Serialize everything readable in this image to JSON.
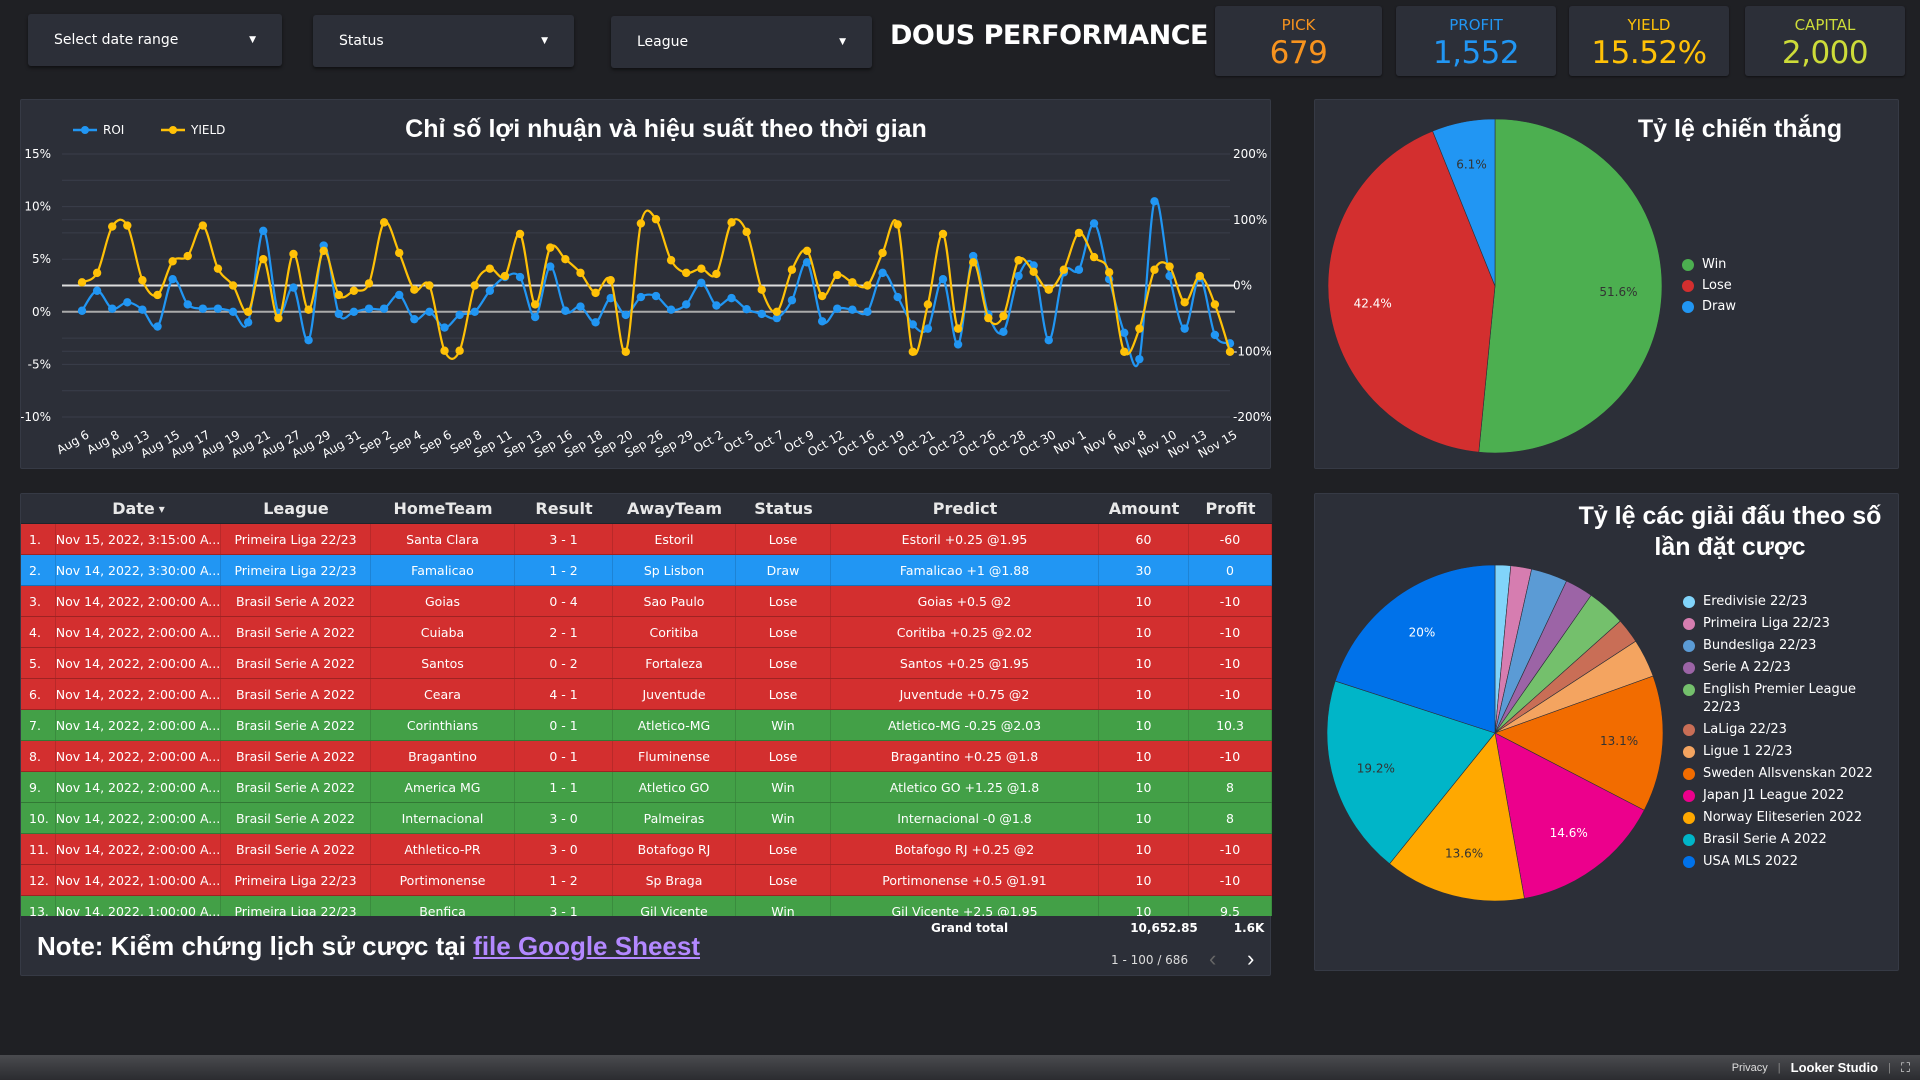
{
  "filters": {
    "date_range": "Select date range",
    "status": "Status",
    "league": "League"
  },
  "brand_title": "DOUS PERFORMANCE",
  "kpis": [
    {
      "label": "PICK",
      "value": "679",
      "color": "#f7931e"
    },
    {
      "label": "PROFIT",
      "value": "1,552",
      "color": "#2196f3"
    },
    {
      "label": "YIELD",
      "value": "15.52%",
      "color": "#ffc107"
    },
    {
      "label": "CAPITAL",
      "value": "2,000",
      "color": "#cddc39"
    }
  ],
  "chart_data": [
    {
      "type": "line",
      "title": "Chỉ số lợi nhuận và hiệu suất theo thời gian",
      "legend_position": "top-left",
      "grid": true,
      "y_left": {
        "ticks": [
          "15%",
          "10%",
          "5%",
          "0%",
          "-5%",
          "-10%"
        ],
        "range": [
          -10,
          15
        ]
      },
      "y_right": {
        "ticks": [
          "200%",
          "100%",
          "0%",
          "-100%",
          "-200%"
        ],
        "range": [
          -200,
          200
        ]
      },
      "x_tick_labels": [
        "Aug 6",
        "Aug 8",
        "Aug 13",
        "Aug 15",
        "Aug 17",
        "Aug 19",
        "Aug 21",
        "Aug 27",
        "Aug 29",
        "Aug 31",
        "Sep 2",
        "Sep 4",
        "Sep 6",
        "Sep 8",
        "Sep 11",
        "Sep 13",
        "Sep 16",
        "Sep 18",
        "Sep 20",
        "Sep 26",
        "Sep 29",
        "Oct 2",
        "Oct 5",
        "Oct 7",
        "Oct 9",
        "Oct 12",
        "Oct 16",
        "Oct 19",
        "Oct 21",
        "Oct 23",
        "Oct 26",
        "Oct 28",
        "Oct 30",
        "Nov 1",
        "Nov 6",
        "Nov 8",
        "Nov 10",
        "Nov 13",
        "Nov 15"
      ],
      "series": [
        {
          "name": "ROI",
          "color": "#2196f3",
          "axis": "left",
          "values": [
            0.1,
            2.0,
            0.3,
            0.9,
            0.2,
            -1.4,
            3.1,
            0.7,
            0.3,
            0.3,
            0,
            -1.0,
            7.7,
            -0.1,
            2.3,
            -2.7,
            6.3,
            -0.2,
            0,
            0.3,
            0.3,
            1.6,
            -0.7,
            0,
            -1.5,
            -0.3,
            0,
            2.0,
            3.3,
            3.3,
            -0.5,
            4.3,
            0.1,
            0.5,
            -1.0,
            1.3,
            -0.3,
            1.4,
            1.5,
            0.2,
            0.7,
            2.75,
            0.6,
            1.3,
            0.25,
            -0.2,
            -0.6,
            1.1,
            4.7,
            -0.9,
            0.3,
            0.2,
            0,
            3.7,
            1.4,
            -1.2,
            -1.6,
            3.1,
            -3.1,
            5.3,
            -0.25,
            -1.9,
            3.4,
            4.4,
            -2.7,
            3.75,
            4.0,
            8.4,
            3.1,
            -2.0,
            -4.5,
            10.5,
            3.4,
            -1.6,
            3.25,
            -2.2,
            -3.0
          ]
        },
        {
          "name": "YIELD",
          "color": "#ffc107",
          "axis": "left",
          "values": [
            2.8,
            3.7,
            8.1,
            8.2,
            3.0,
            1.6,
            4.8,
            5.3,
            8.2,
            4.1,
            2.5,
            0,
            5.0,
            -0.6,
            5.5,
            0.2,
            5.8,
            1.6,
            2.0,
            2.7,
            8.5,
            5.6,
            2.1,
            2.5,
            -3.7,
            -3.7,
            2.5,
            4.1,
            3.4,
            7.4,
            0.7,
            6.1,
            5.0,
            3.7,
            1.8,
            3.0,
            -3.8,
            8.4,
            8.8,
            4.9,
            3.7,
            4.1,
            3.6,
            8.5,
            7.6,
            2.1,
            0,
            4.0,
            5.8,
            1.5,
            3.5,
            2.8,
            2.5,
            5.6,
            8.3,
            -3.8,
            0.7,
            7.4,
            -1.6,
            4.7,
            -0.6,
            -0.4,
            4.9,
            3.8,
            2.1,
            4.0,
            7.5,
            5.2,
            3.75,
            -3.8,
            -1.6,
            4.0,
            4.3,
            0.9,
            3.4,
            0.7,
            -3.8
          ]
        }
      ]
    },
    {
      "type": "pie",
      "title": "Tỷ lệ chiến thắng",
      "legend_position": "right",
      "slices": [
        {
          "name": "Win",
          "value": 51.6,
          "label": "51.6%",
          "color": "#4caf50",
          "label_color": "#333"
        },
        {
          "name": "Lose",
          "value": 42.4,
          "label": "42.4%",
          "color": "#d32f2f",
          "label_color": "#fff"
        },
        {
          "name": "Draw",
          "value": 6.1,
          "label": "6.1%",
          "color": "#2196f3",
          "label_color": "#333"
        }
      ]
    },
    {
      "type": "pie",
      "title": "Tỷ lệ các giải đấu theo số lần đặt cược",
      "legend_position": "right",
      "slices": [
        {
          "name": "Eredivisie 22/23",
          "value": 1.5,
          "color": "#81d4fa"
        },
        {
          "name": "Primeira Liga 22/23",
          "value": 2.0,
          "color": "#d67db0"
        },
        {
          "name": "Bundesliga 22/23",
          "value": 3.5,
          "color": "#5b9bd5"
        },
        {
          "name": "Serie A 22/23",
          "value": 2.7,
          "color": "#9c64a6"
        },
        {
          "name": "English Premier League 22/23",
          "value": 3.7,
          "color": "#74c06c"
        },
        {
          "name": "LaLiga 22/23",
          "value": 2.4,
          "color": "#c96e56"
        },
        {
          "name": "Ligue 1 22/23",
          "value": 3.7,
          "color": "#f4a460"
        },
        {
          "name": "Sweden Allsvenskan 2022",
          "value": 13.1,
          "label": "13.1%",
          "color": "#f26c00",
          "label_color": "#333"
        },
        {
          "name": "Japan J1 League 2022",
          "value": 14.6,
          "label": "14.6%",
          "color": "#ec008c",
          "label_color": "#fff"
        },
        {
          "name": "Norway Eliteserien 2022",
          "value": 13.6,
          "label": "13.6%",
          "color": "#ffa800",
          "label_color": "#333"
        },
        {
          "name": "Brasil Serie A 2022",
          "value": 19.2,
          "label": "19.2%",
          "color": "#00b5c8",
          "label_color": "#333"
        },
        {
          "name": "USA MLS 2022",
          "value": 20.0,
          "label": "20%",
          "color": "#0072ea",
          "label_color": "#fff"
        }
      ]
    }
  ],
  "table": {
    "columns": [
      "",
      "Date",
      "League",
      "HomeTeam",
      "Result",
      "AwayTeam",
      "Status",
      "Predict",
      "Amount",
      "Profit"
    ],
    "sort_icon": "triangle-down",
    "status_colors": {
      "Lose": "#d32f2f",
      "Draw": "#2196f3",
      "Win": "#43a047"
    },
    "rows": [
      [
        "1.",
        "Nov 15, 2022, 3:15:00 A...",
        "Primeira Liga 22/23",
        "Santa Clara",
        "3 - 1",
        "Estoril",
        "Lose",
        "Estoril +0.25 @1.95",
        "60",
        "-60"
      ],
      [
        "2.",
        "Nov 14, 2022, 3:30:00 A...",
        "Primeira Liga 22/23",
        "Famalicao",
        "1 - 2",
        "Sp Lisbon",
        "Draw",
        "Famalicao +1 @1.88",
        "30",
        "0"
      ],
      [
        "3.",
        "Nov 14, 2022, 2:00:00 A...",
        "Brasil Serie A 2022",
        "Goias",
        "0 - 4",
        "Sao Paulo",
        "Lose",
        "Goias +0.5 @2",
        "10",
        "-10"
      ],
      [
        "4.",
        "Nov 14, 2022, 2:00:00 A...",
        "Brasil Serie A 2022",
        "Cuiaba",
        "2 - 1",
        "Coritiba",
        "Lose",
        "Coritiba +0.25 @2.02",
        "10",
        "-10"
      ],
      [
        "5.",
        "Nov 14, 2022, 2:00:00 A...",
        "Brasil Serie A 2022",
        "Santos",
        "0 - 2",
        "Fortaleza",
        "Lose",
        "Santos +0.25 @1.95",
        "10",
        "-10"
      ],
      [
        "6.",
        "Nov 14, 2022, 2:00:00 A...",
        "Brasil Serie A 2022",
        "Ceara",
        "4 - 1",
        "Juventude",
        "Lose",
        "Juventude +0.75 @2",
        "10",
        "-10"
      ],
      [
        "7.",
        "Nov 14, 2022, 2:00:00 A...",
        "Brasil Serie A 2022",
        "Corinthians",
        "0 - 1",
        "Atletico-MG",
        "Win",
        "Atletico-MG -0.25 @2.03",
        "10",
        "10.3"
      ],
      [
        "8.",
        "Nov 14, 2022, 2:00:00 A...",
        "Brasil Serie A 2022",
        "Bragantino",
        "0 - 1",
        "Fluminense",
        "Lose",
        "Bragantino +0.25 @1.8",
        "10",
        "-10"
      ],
      [
        "9.",
        "Nov 14, 2022, 2:00:00 A...",
        "Brasil Serie A 2022",
        "America MG",
        "1 - 1",
        "Atletico GO",
        "Win",
        "Atletico GO +1.25 @1.8",
        "10",
        "8"
      ],
      [
        "10.",
        "Nov 14, 2022, 2:00:00 A...",
        "Brasil Serie A 2022",
        "Internacional",
        "3 - 0",
        "Palmeiras",
        "Win",
        "Internacional -0 @1.8",
        "10",
        "8"
      ],
      [
        "11.",
        "Nov 14, 2022, 2:00:00 A...",
        "Brasil Serie A 2022",
        "Athletico-PR",
        "3 - 0",
        "Botafogo RJ",
        "Lose",
        "Botafogo RJ +0.25 @2",
        "10",
        "-10"
      ],
      [
        "12.",
        "Nov 14, 2022, 1:00:00 A...",
        "Primeira Liga 22/23",
        "Portimonense",
        "1 - 2",
        "Sp Braga",
        "Lose",
        "Portimonense +0.5 @1.91",
        "10",
        "-10"
      ],
      [
        "13.",
        "Nov 14, 2022, 1:00:00 A...",
        "Primeira Liga 22/23",
        "Benfica",
        "3 - 1",
        "Gil Vicente",
        "Win",
        "Gil Vicente +2.5 @1.95",
        "10",
        "9.5"
      ]
    ],
    "grand_total_label": "Grand total",
    "grand_total_amount": "10,652.85",
    "grand_total_profit": "1.6K",
    "pagination": "1 - 100 / 686"
  },
  "note": {
    "prefix": "Note: Kiểm chứng lịch sử cược tại ",
    "link_text": "file Google Sheest",
    "link_color": "#b388ff"
  },
  "footer": {
    "privacy": "Privacy",
    "brand": "Looker Studio",
    "fullscreen_icon": "fullscreen-icon"
  }
}
